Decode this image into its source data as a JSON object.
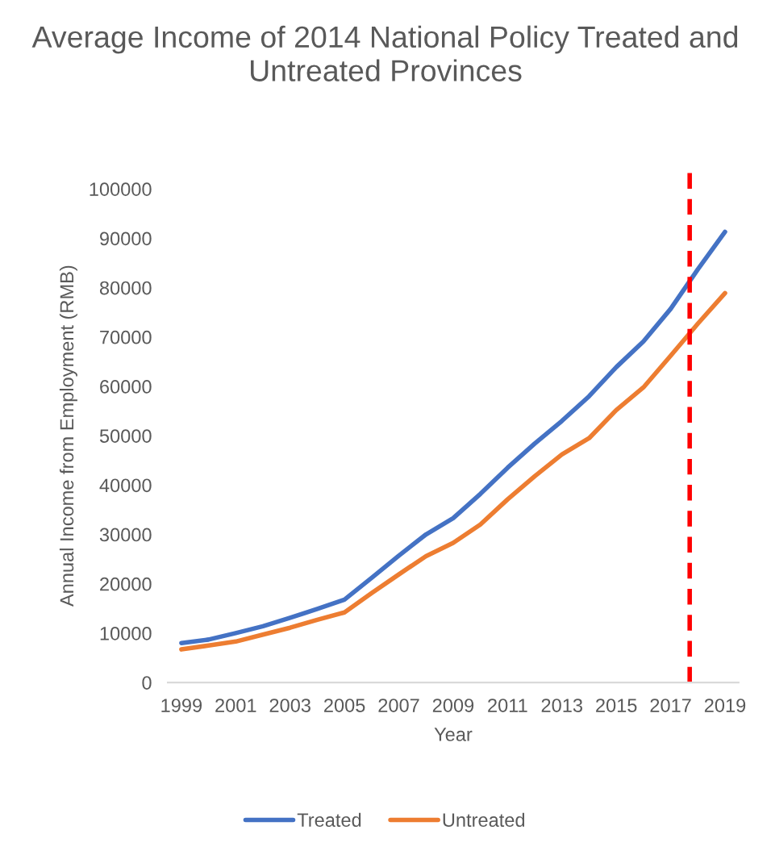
{
  "chart_data": {
    "type": "line",
    "title": "Average Income of 2014 National Policy Treated and Untreated Provinces",
    "xlabel": "Year",
    "ylabel": "Annual Income from Employment (RMB)",
    "x": [
      1999,
      2000,
      2001,
      2002,
      2003,
      2004,
      2005,
      2006,
      2007,
      2008,
      2009,
      2010,
      2011,
      2012,
      2013,
      2014,
      2015,
      2016,
      2017,
      2018,
      2019
    ],
    "series": [
      {
        "name": "Treated",
        "color": "#4472c4",
        "values": [
          8000,
          8700,
          10000,
          11400,
          13100,
          14900,
          16800,
          21200,
          25700,
          30000,
          33300,
          38200,
          43500,
          48400,
          53000,
          58000,
          63900,
          69100,
          75700,
          83700,
          91300
        ]
      },
      {
        "name": "Untreated",
        "color": "#ed7d31",
        "values": [
          6700,
          7500,
          8300,
          9700,
          11100,
          12700,
          14200,
          18100,
          21900,
          25600,
          28300,
          32000,
          37100,
          41800,
          46200,
          49500,
          55200,
          59800,
          66200,
          72700,
          78900
        ]
      }
    ],
    "xlim": [
      1998.5,
      2019.5
    ],
    "xticks": [
      1999,
      2001,
      2003,
      2005,
      2007,
      2009,
      2011,
      2013,
      2015,
      2017,
      2019
    ],
    "ylim": [
      0,
      100000
    ],
    "yticks": [
      0,
      10000,
      20000,
      30000,
      40000,
      50000,
      60000,
      70000,
      80000,
      90000,
      100000
    ],
    "ref_lines": [
      {
        "axis": "x",
        "value": 2017.7,
        "color": "#ff0000",
        "line_style": "dashed"
      }
    ],
    "grid": false,
    "legend": "bottom",
    "marker": "none",
    "line_style": "solid"
  }
}
